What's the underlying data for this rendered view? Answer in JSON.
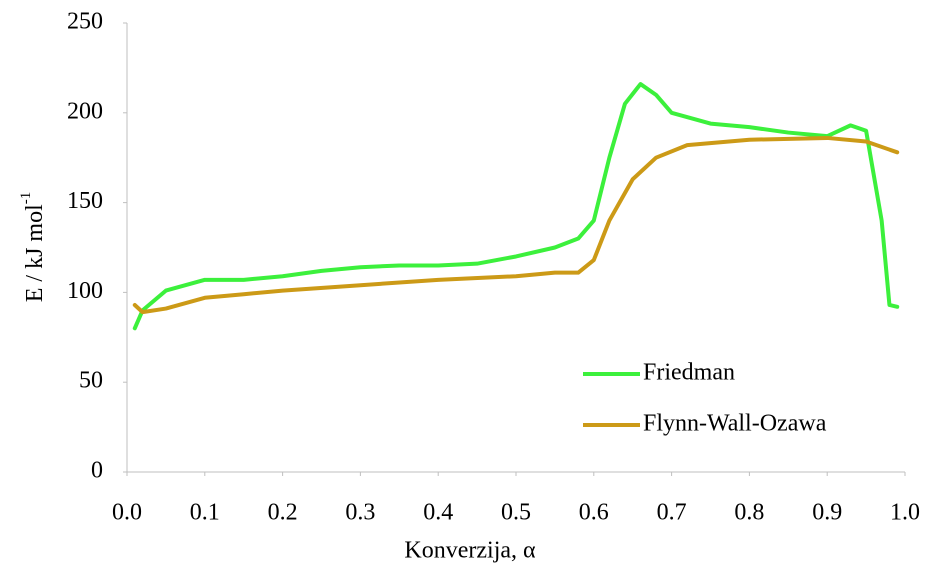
{
  "chart_data": {
    "type": "line",
    "x_label": "Konverzija, α",
    "y_label": {
      "base": "E / kJ mol",
      "superscript": "-1"
    },
    "xlim": [
      0,
      1
    ],
    "ylim": [
      0,
      250
    ],
    "xticks": [
      {
        "value": 0,
        "label": "0.0"
      },
      0.1,
      0.2,
      0.3,
      0.4,
      0.5,
      0.6,
      0.7,
      0.8,
      0.9,
      {
        "value": 1,
        "label": "1.0"
      }
    ],
    "yticks": [
      0,
      50,
      100,
      150,
      200,
      250
    ],
    "grid": false,
    "legend": "lower right",
    "series": [
      {
        "name": "Friedman",
        "color": "#3cf03c",
        "x": [
          0.01,
          0.02,
          0.05,
          0.1,
          0.15,
          0.2,
          0.25,
          0.3,
          0.35,
          0.4,
          0.45,
          0.5,
          0.55,
          0.58,
          0.6,
          0.62,
          0.64,
          0.66,
          0.68,
          0.7,
          0.75,
          0.8,
          0.85,
          0.9,
          0.93,
          0.95,
          0.97,
          0.98,
          0.99
        ],
        "values": [
          80,
          90,
          101,
          107,
          107,
          109,
          112,
          114,
          115,
          115,
          116,
          120,
          125,
          130,
          140,
          175,
          205,
          216,
          210,
          200,
          194,
          192,
          189,
          187,
          193,
          190,
          140,
          93,
          92
        ]
      },
      {
        "name": "Flynn-Wall-Ozawa",
        "color": "#cc9a17",
        "x": [
          0.01,
          0.02,
          0.05,
          0.1,
          0.15,
          0.2,
          0.3,
          0.4,
          0.5,
          0.55,
          0.58,
          0.6,
          0.62,
          0.65,
          0.68,
          0.72,
          0.8,
          0.9,
          0.95,
          0.99
        ],
        "values": [
          93,
          89,
          91,
          97,
          99,
          101,
          104,
          107,
          109,
          111,
          111,
          118,
          140,
          163,
          175,
          182,
          185,
          186,
          184,
          178
        ]
      }
    ]
  }
}
